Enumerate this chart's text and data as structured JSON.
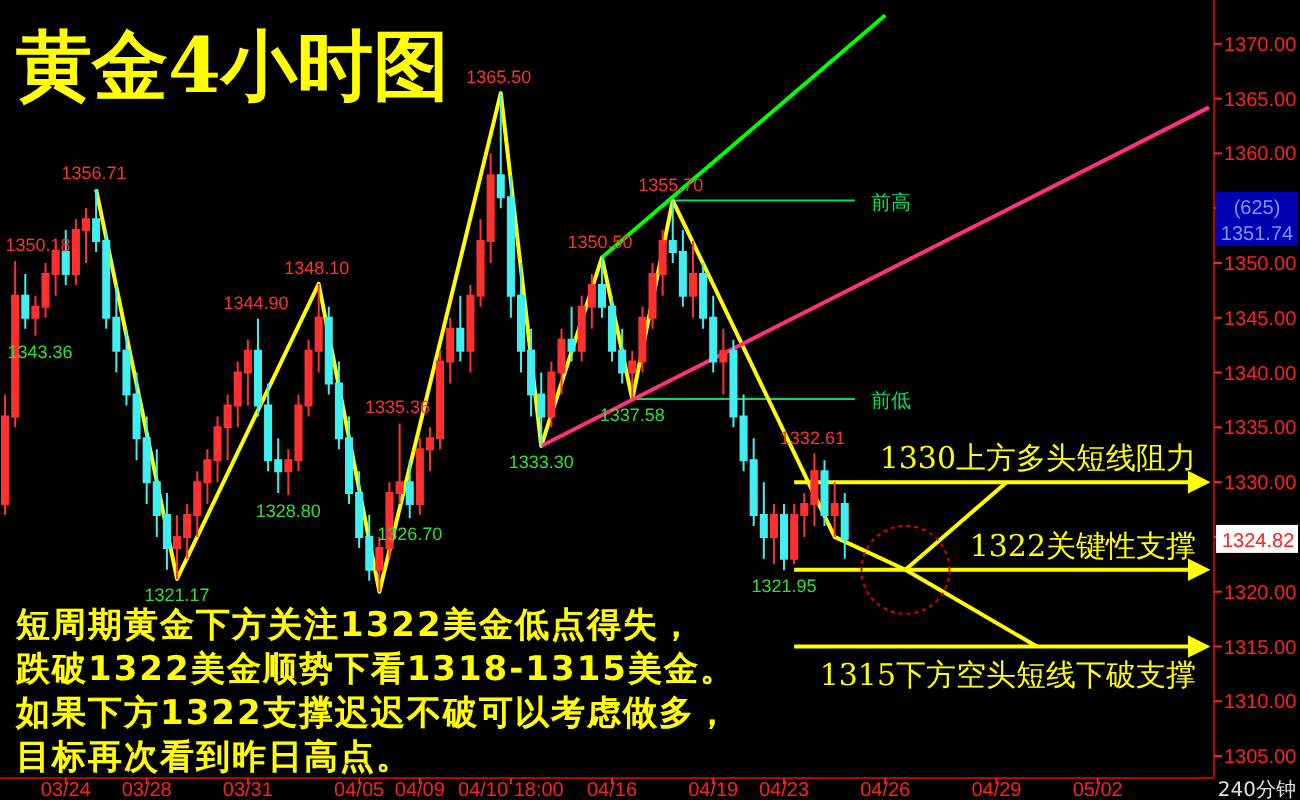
{
  "chart_data": {
    "type": "candlestick",
    "title": "黄金4小时图",
    "annotations": [
      "短周期黄金下方关注1322美金低点得失，",
      "跌破1322美金顺势下看1318-1315美金。",
      "如果下方1322支撑迟迟不破可以考虑做多，",
      "目标再次看到昨日高点。",
      "(625)",
      "1351.74",
      "240分钟",
      {
        "text": "1350.18",
        "y": 1350.18
      },
      {
        "text": "1343.36",
        "y": 1343.36
      },
      {
        "text": "1356.71",
        "y": 1356.71
      },
      {
        "text": "1321.17",
        "y": 1321.17
      },
      {
        "text": "1344.90",
        "y": 1344.9
      },
      {
        "text": "1328.80",
        "y": 1328.8
      },
      {
        "text": "1348.10",
        "y": 1348.1
      },
      {
        "text": "1335.36",
        "y": 1335.36
      },
      {
        "text": "1326.70",
        "y": 1326.7
      },
      {
        "text": "1365.50",
        "y": 1365.5
      },
      {
        "text": "1333.30",
        "y": 1333.3
      },
      {
        "text": "1350.50",
        "y": 1350.5
      },
      {
        "text": "1337.58",
        "y": 1337.58
      },
      {
        "text": "1355.70",
        "y": 1355.7
      },
      {
        "text": "1332.61",
        "y": 1332.61
      },
      {
        "text": "1321.95",
        "y": 1321.95
      },
      {
        "text": "1324.82",
        "y": 1324.82
      }
    ],
    "categories": [
      null,
      null,
      null,
      null,
      null,
      null,
      "03/24",
      null,
      null,
      null,
      null,
      null,
      null,
      null,
      "03/28",
      null,
      null,
      null,
      null,
      null,
      null,
      null,
      null,
      null,
      "03/31",
      null,
      null,
      null,
      null,
      null,
      null,
      null,
      null,
      null,
      null,
      "04/05",
      null,
      null,
      null,
      null,
      null,
      "04/09",
      null,
      null,
      null,
      null,
      null,
      null,
      null,
      null,
      "04/10 18:00",
      null,
      null,
      null,
      null,
      null,
      null,
      null,
      null,
      null,
      "04/16",
      null,
      null,
      null,
      null,
      null,
      null,
      null,
      null,
      null,
      "04/19",
      null,
      null,
      null,
      null,
      null,
      null,
      "04/23",
      null,
      null,
      null,
      null,
      null,
      null,
      null,
      null,
      null,
      "04/26",
      null,
      null,
      null,
      null,
      null,
      null,
      null,
      null,
      null,
      null,
      "04/29",
      null,
      null,
      null,
      null,
      null,
      null,
      null,
      null,
      null,
      "05/02",
      null,
      null,
      null,
      null,
      null,
      null,
      null,
      null,
      null,
      null,
      null
    ],
    "ohlc": [
      [
        1328,
        1338,
        1327,
        1336
      ],
      [
        1336,
        1350.18,
        1335,
        1347
      ],
      [
        1347,
        1349,
        1344,
        1345
      ],
      [
        1345,
        1347,
        1343.36,
        1346
      ],
      [
        1346,
        1350,
        1345,
        1349
      ],
      [
        1349,
        1352,
        1347,
        1351
      ],
      [
        1351,
        1353,
        1348,
        1349
      ],
      [
        1349,
        1354,
        1348,
        1353
      ],
      [
        1353,
        1355,
        1350,
        1354
      ],
      [
        1354,
        1356.71,
        1351,
        1352
      ],
      [
        1352,
        1353,
        1344,
        1345
      ],
      [
        1345,
        1348,
        1340,
        1342
      ],
      [
        1342,
        1344,
        1337,
        1338
      ],
      [
        1338,
        1340,
        1332,
        1334
      ],
      [
        1334,
        1336,
        1328,
        1330
      ],
      [
        1330,
        1333,
        1325,
        1327
      ],
      [
        1327,
        1329,
        1322,
        1324
      ],
      [
        1324,
        1327,
        1321.17,
        1325
      ],
      [
        1325,
        1328,
        1323,
        1327
      ],
      [
        1327,
        1331,
        1325,
        1330
      ],
      [
        1330,
        1333,
        1328,
        1332
      ],
      [
        1332,
        1336,
        1330,
        1335
      ],
      [
        1335,
        1338,
        1332,
        1337
      ],
      [
        1337,
        1341,
        1335,
        1340
      ],
      [
        1340,
        1343,
        1337,
        1342
      ],
      [
        1342,
        1344.9,
        1336,
        1337
      ],
      [
        1337,
        1339,
        1331,
        1332
      ],
      [
        1332,
        1334,
        1329,
        1331
      ],
      [
        1331,
        1333,
        1328.8,
        1332
      ],
      [
        1332,
        1338,
        1331,
        1337
      ],
      [
        1337,
        1343,
        1336,
        1342
      ],
      [
        1342,
        1348.1,
        1340,
        1345
      ],
      [
        1345,
        1346,
        1338,
        1339
      ],
      [
        1339,
        1341,
        1333,
        1334
      ],
      [
        1334,
        1336,
        1328,
        1329
      ],
      [
        1329,
        1331,
        1324,
        1325
      ],
      [
        1325,
        1327,
        1321,
        1322
      ],
      [
        1322,
        1325,
        1320,
        1324
      ],
      [
        1324,
        1330,
        1323,
        1329
      ],
      [
        1329,
        1335.36,
        1328,
        1330
      ],
      [
        1330,
        1332,
        1326.7,
        1328
      ],
      [
        1328,
        1334,
        1327,
        1333
      ],
      [
        1333,
        1335,
        1331,
        1334
      ],
      [
        1334,
        1342,
        1333,
        1341
      ],
      [
        1341,
        1345,
        1339,
        1344
      ],
      [
        1344,
        1347,
        1341,
        1342
      ],
      [
        1342,
        1348,
        1340,
        1347
      ],
      [
        1347,
        1354,
        1346,
        1352
      ],
      [
        1352,
        1360,
        1350,
        1358
      ],
      [
        1358,
        1365.5,
        1355,
        1356
      ],
      [
        1356,
        1358,
        1345,
        1347
      ],
      [
        1347,
        1350,
        1340,
        1342
      ],
      [
        1342,
        1344,
        1336,
        1338
      ],
      [
        1338,
        1340,
        1333.3,
        1336
      ],
      [
        1336,
        1341,
        1335,
        1340
      ],
      [
        1340,
        1344,
        1338,
        1343
      ],
      [
        1343,
        1346,
        1341,
        1342
      ],
      [
        1342,
        1347,
        1341,
        1346
      ],
      [
        1346,
        1349,
        1344,
        1348
      ],
      [
        1348,
        1350.5,
        1345,
        1346
      ],
      [
        1346,
        1347,
        1341,
        1342
      ],
      [
        1342,
        1344,
        1339,
        1340
      ],
      [
        1340,
        1342,
        1337.58,
        1341
      ],
      [
        1341,
        1346,
        1340,
        1345
      ],
      [
        1345,
        1350,
        1344,
        1349
      ],
      [
        1349,
        1353,
        1347,
        1352
      ],
      [
        1352,
        1355.7,
        1350,
        1351
      ],
      [
        1351,
        1353,
        1346,
        1347
      ],
      [
        1347,
        1352,
        1345,
        1349
      ],
      [
        1349,
        1350,
        1344,
        1345
      ],
      [
        1345,
        1347,
        1340,
        1341
      ],
      [
        1341,
        1344,
        1338,
        1342
      ],
      [
        1342,
        1343,
        1335,
        1336
      ],
      [
        1336,
        1338,
        1331,
        1332
      ],
      [
        1332,
        1334,
        1326,
        1327
      ],
      [
        1327,
        1330,
        1323,
        1325
      ],
      [
        1325,
        1328,
        1322.5,
        1327
      ],
      [
        1327,
        1328,
        1321.95,
        1323
      ],
      [
        1323,
        1328,
        1322.5,
        1327
      ],
      [
        1327,
        1329,
        1325,
        1328
      ],
      [
        1328,
        1332.61,
        1326,
        1331
      ],
      [
        1331,
        1332,
        1326,
        1327
      ],
      [
        1327,
        1330,
        1325,
        1328
      ],
      [
        1328,
        1329,
        1323,
        1324.82
      ],
      null,
      null,
      null,
      null,
      null,
      null,
      null,
      null,
      null,
      null,
      null,
      null,
      null,
      null,
      null,
      null,
      null,
      null,
      null,
      null,
      null,
      null,
      null,
      null,
      null,
      null,
      null,
      null,
      null,
      null,
      null,
      null,
      null,
      null,
      null,
      null
    ],
    "ylim": [
      1303,
      1374
    ],
    "yticks": [
      {
        "value": 1305,
        "label": "1305.00"
      },
      {
        "value": 1310,
        "label": "1310.00"
      },
      {
        "value": 1315,
        "label": "1315.00"
      },
      {
        "value": 1320,
        "label": "1320.00"
      },
      {
        "value": 1325,
        "label": null
      },
      {
        "value": 1330,
        "label": "1330.00"
      },
      {
        "value": 1335,
        "label": "1335.00"
      },
      {
        "value": 1340,
        "label": "1340.00"
      },
      {
        "value": 1345,
        "label": "1345.00"
      },
      {
        "value": 1350,
        "label": "1350.00"
      },
      {
        "value": 1355,
        "label": null
      },
      {
        "value": 1360,
        "label": "1360.00"
      },
      {
        "value": 1365,
        "label": "1365.00"
      },
      {
        "value": 1370,
        "label": "1370.00"
      }
    ],
    "series": [
      {
        "type": "line",
        "color": "#ffff00",
        "values": [
          null,
          null,
          null,
          null,
          null,
          null,
          null,
          null,
          null,
          1356.71,
          null,
          null,
          null,
          null,
          null,
          null,
          null,
          1321.17,
          null,
          null,
          null,
          null,
          null,
          null,
          null,
          null,
          null,
          null,
          null,
          null,
          null,
          1348.1,
          null,
          null,
          null,
          null,
          null,
          1320,
          null,
          null,
          null,
          null,
          null,
          null,
          null,
          null,
          null,
          null,
          null,
          1365.5,
          null,
          null,
          null,
          1333.3,
          null,
          null,
          null,
          null,
          null,
          1350.5,
          null,
          null,
          1337.58,
          null,
          null,
          null,
          1355.7,
          null,
          null,
          null,
          null,
          null,
          null,
          null,
          null,
          null,
          null,
          null,
          null,
          null,
          null,
          null,
          1325,
          null,
          null,
          null,
          null,
          null,
          null,
          1322,
          null,
          null,
          null,
          null,
          null,
          null,
          null,
          null,
          null,
          1330,
          null,
          null,
          null,
          null,
          null,
          null,
          null,
          null,
          null,
          null,
          null,
          null,
          null,
          null,
          null,
          null,
          null,
          null,
          null,
          null
        ]
      },
      {
        "type": "line",
        "color": "#ffff00",
        "values": [
          null,
          null,
          null,
          null,
          null,
          null,
          null,
          null,
          null,
          null,
          null,
          null,
          null,
          null,
          null,
          null,
          null,
          null,
          null,
          null,
          null,
          null,
          null,
          null,
          null,
          null,
          null,
          null,
          null,
          null,
          null,
          null,
          null,
          null,
          null,
          null,
          null,
          null,
          null,
          null,
          null,
          null,
          null,
          null,
          null,
          null,
          null,
          null,
          null,
          null,
          null,
          null,
          null,
          null,
          null,
          null,
          null,
          null,
          null,
          null,
          null,
          null,
          null,
          null,
          null,
          null,
          null,
          null,
          null,
          null,
          null,
          null,
          null,
          null,
          null,
          null,
          null,
          null,
          null,
          null,
          null,
          null,
          null,
          null,
          null,
          null,
          null,
          null,
          null,
          1322,
          null,
          null,
          null,
          null,
          null,
          null,
          null,
          null,
          null,
          null,
          null,
          null,
          1315,
          null,
          null,
          null,
          null,
          null,
          null,
          null,
          null,
          null,
          null,
          null,
          null,
          null,
          null,
          null,
          null,
          null
        ]
      },
      {
        "type": "line",
        "color": "#00ff00",
        "values": [
          null,
          null,
          null,
          null,
          null,
          null,
          null,
          null,
          null,
          null,
          null,
          null,
          null,
          null,
          null,
          null,
          null,
          null,
          null,
          null,
          null,
          null,
          null,
          null,
          null,
          null,
          null,
          null,
          null,
          null,
          null,
          null,
          null,
          null,
          null,
          null,
          null,
          null,
          null,
          null,
          null,
          null,
          null,
          null,
          null,
          null,
          null,
          null,
          null,
          null,
          null,
          null,
          null,
          null,
          null,
          null,
          null,
          null,
          null,
          1350.5,
          null,
          null,
          null,
          null,
          null,
          null,
          null,
          null,
          null,
          null,
          null,
          null,
          null,
          null,
          null,
          null,
          null,
          null,
          null,
          null,
          null,
          null,
          null,
          null,
          null,
          null,
          null,
          1372.6,
          null,
          null,
          null,
          null,
          null,
          null,
          null,
          null,
          null,
          null,
          null,
          null,
          null,
          null,
          null,
          null,
          null,
          null,
          null,
          null,
          null,
          null,
          null,
          null,
          null,
          null,
          null,
          null,
          null,
          null,
          null,
          null
        ]
      },
      {
        "type": "line",
        "color": "#ff3080",
        "values": [
          null,
          null,
          null,
          null,
          null,
          null,
          null,
          null,
          null,
          null,
          null,
          null,
          null,
          null,
          null,
          null,
          null,
          null,
          null,
          null,
          null,
          null,
          null,
          null,
          null,
          null,
          null,
          null,
          null,
          null,
          null,
          null,
          null,
          null,
          null,
          null,
          null,
          null,
          null,
          null,
          null,
          null,
          null,
          null,
          null,
          null,
          null,
          null,
          null,
          null,
          null,
          null,
          null,
          1333.3,
          null,
          null,
          null,
          null,
          null,
          null,
          null,
          null,
          null,
          null,
          null,
          null,
          null,
          null,
          null,
          null,
          null,
          null,
          null,
          null,
          null,
          null,
          null,
          null,
          null,
          null,
          null,
          null,
          null,
          null,
          null,
          null,
          null,
          null,
          null,
          null,
          null,
          null,
          null,
          null,
          null,
          null,
          null,
          null,
          null,
          null,
          null,
          null,
          null,
          null,
          null,
          null,
          null,
          null,
          null,
          null,
          null,
          null,
          null,
          null,
          null,
          null,
          null,
          null,
          null,
          1364.2
        ]
      }
    ],
    "ref_lines": [
      {
        "axis": "y",
        "value": 1355.7,
        "label": "前高",
        "color": "#00e060"
      },
      {
        "axis": "y",
        "value": 1337.58,
        "label": "前低",
        "color": "#00e060"
      },
      {
        "axis": "y",
        "value": 1330,
        "label": "1330上方多头短线阻力",
        "color": "#ffff00"
      },
      {
        "axis": "y",
        "value": 1322,
        "label": "1322关键性支撑",
        "color": "#ffff00"
      },
      {
        "axis": "y",
        "value": 1315,
        "label": "1315下方空头短线下破支撑",
        "color": "#ffff00"
      }
    ]
  }
}
